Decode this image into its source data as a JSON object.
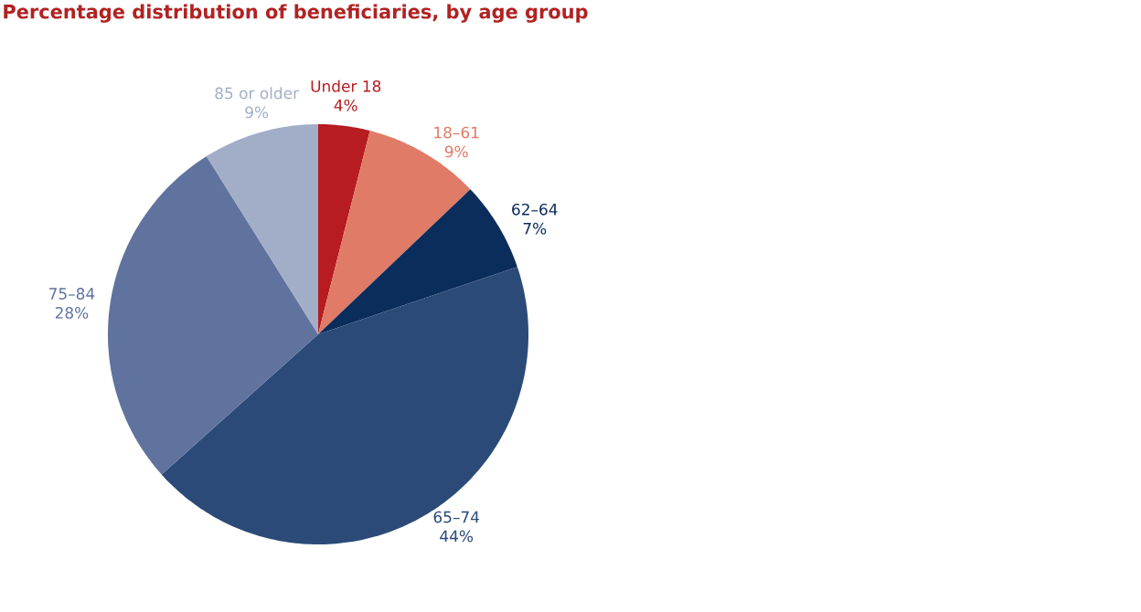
{
  "chart_data": {
    "type": "pie",
    "title": "Percentage distribution of beneficiaries, by age group",
    "categories": [
      "Under 18",
      "18–61",
      "62–64",
      "65–74",
      "75–84",
      "85 or older"
    ],
    "values": [
      4,
      9,
      7,
      44,
      28,
      9
    ],
    "value_labels": [
      "4%",
      "9%",
      "7%",
      "44%",
      "28%",
      "9%"
    ],
    "colors": [
      "#b71c20",
      "#e07b67",
      "#0b2d5c",
      "#2b4a78",
      "#5f739e",
      "#a2adc8"
    ]
  }
}
